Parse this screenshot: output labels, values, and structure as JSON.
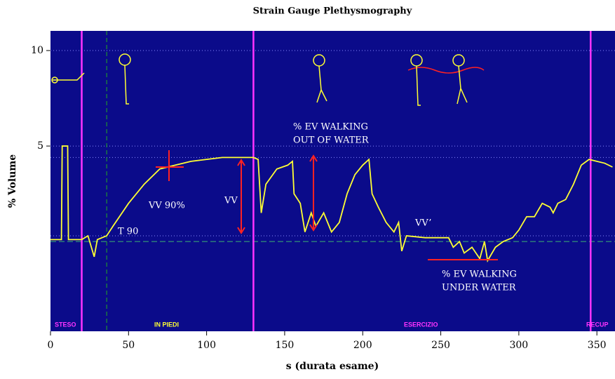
{
  "chart_data": {
    "type": "line",
    "title": "Strain Gauge Plethysmography",
    "x_label": "s (durata esame)",
    "y_label": "% Volume",
    "xlim": [
      0,
      361.6
    ],
    "ylim": [
      -4.7,
      11.03
    ],
    "xticks": [
      0,
      50,
      100,
      150,
      200,
      250,
      300,
      350
    ],
    "yticks": [
      5,
      10
    ],
    "grid": true,
    "background": "#0b0b8a",
    "series": [
      {
        "name": "Volume",
        "color": "#ffff33",
        "x": [
          0,
          7,
          7.5,
          11,
          11.5,
          20,
          24,
          28,
          30,
          36,
          40,
          50,
          60,
          70,
          80,
          90,
          100,
          110,
          120,
          130,
          133,
          135,
          138,
          145,
          152,
          155,
          156,
          160,
          163,
          167,
          170,
          175,
          180,
          185,
          190,
          195,
          200,
          204,
          206,
          210,
          215,
          220,
          223,
          225,
          228,
          240,
          255,
          258,
          262,
          265,
          270,
          275,
          278,
          280,
          285,
          290,
          296,
          300,
          305,
          310,
          315,
          320,
          322,
          325,
          330,
          335,
          340,
          345,
          350,
          355,
          360
        ],
        "values": [
          0.1,
          0.1,
          5,
          5,
          0.1,
          0.1,
          0.3,
          -0.8,
          0.1,
          0.3,
          0.8,
          2,
          3,
          3.8,
          4.0,
          4.2,
          4.3,
          4.4,
          4.4,
          4.4,
          4.3,
          1.5,
          3,
          3.8,
          4,
          4.2,
          2.5,
          2,
          0.5,
          1.5,
          0.8,
          1.5,
          0.5,
          1,
          2.5,
          3.5,
          4,
          4.3,
          2.5,
          1.8,
          1,
          0.5,
          1,
          -0.5,
          0.3,
          0.2,
          0.2,
          -0.3,
          0,
          -0.6,
          -0.3,
          -0.9,
          0,
          -1,
          -0.3,
          0,
          0.2,
          0.6,
          1.3,
          1.3,
          2,
          1.8,
          1.5,
          2.0,
          2.2,
          3,
          4,
          4.3,
          4.2,
          4.1,
          3.9
        ]
      }
    ],
    "vlines": [
      {
        "x": 20,
        "color": "#ff33ff"
      },
      {
        "x": 130,
        "color": "#ff33ff"
      },
      {
        "x": 346,
        "color": "#ff33ff"
      },
      {
        "x": 36,
        "color": "#22aa22"
      }
    ],
    "hlines": [
      {
        "y": 0,
        "color": "#3cb371"
      },
      {
        "y": 0.3,
        "color": "#8888ff"
      },
      {
        "y": 4.4,
        "color": "#8888ff"
      }
    ],
    "phases": [
      {
        "label": "STESO",
        "color": "#ff33ff"
      },
      {
        "label": "IN PIEDI",
        "color": "#ffff33"
      },
      {
        "label": "ESERCIZIO",
        "color": "#ff33ff"
      },
      {
        "label": "RECUP",
        "color": "#ff33ff"
      }
    ],
    "annotations": [
      "VV 90%",
      "VV",
      "T 90",
      "% EV WALKING",
      "OUT OF WATER",
      "VV’",
      "% EV  WALKING",
      "UNDER WATER"
    ]
  }
}
